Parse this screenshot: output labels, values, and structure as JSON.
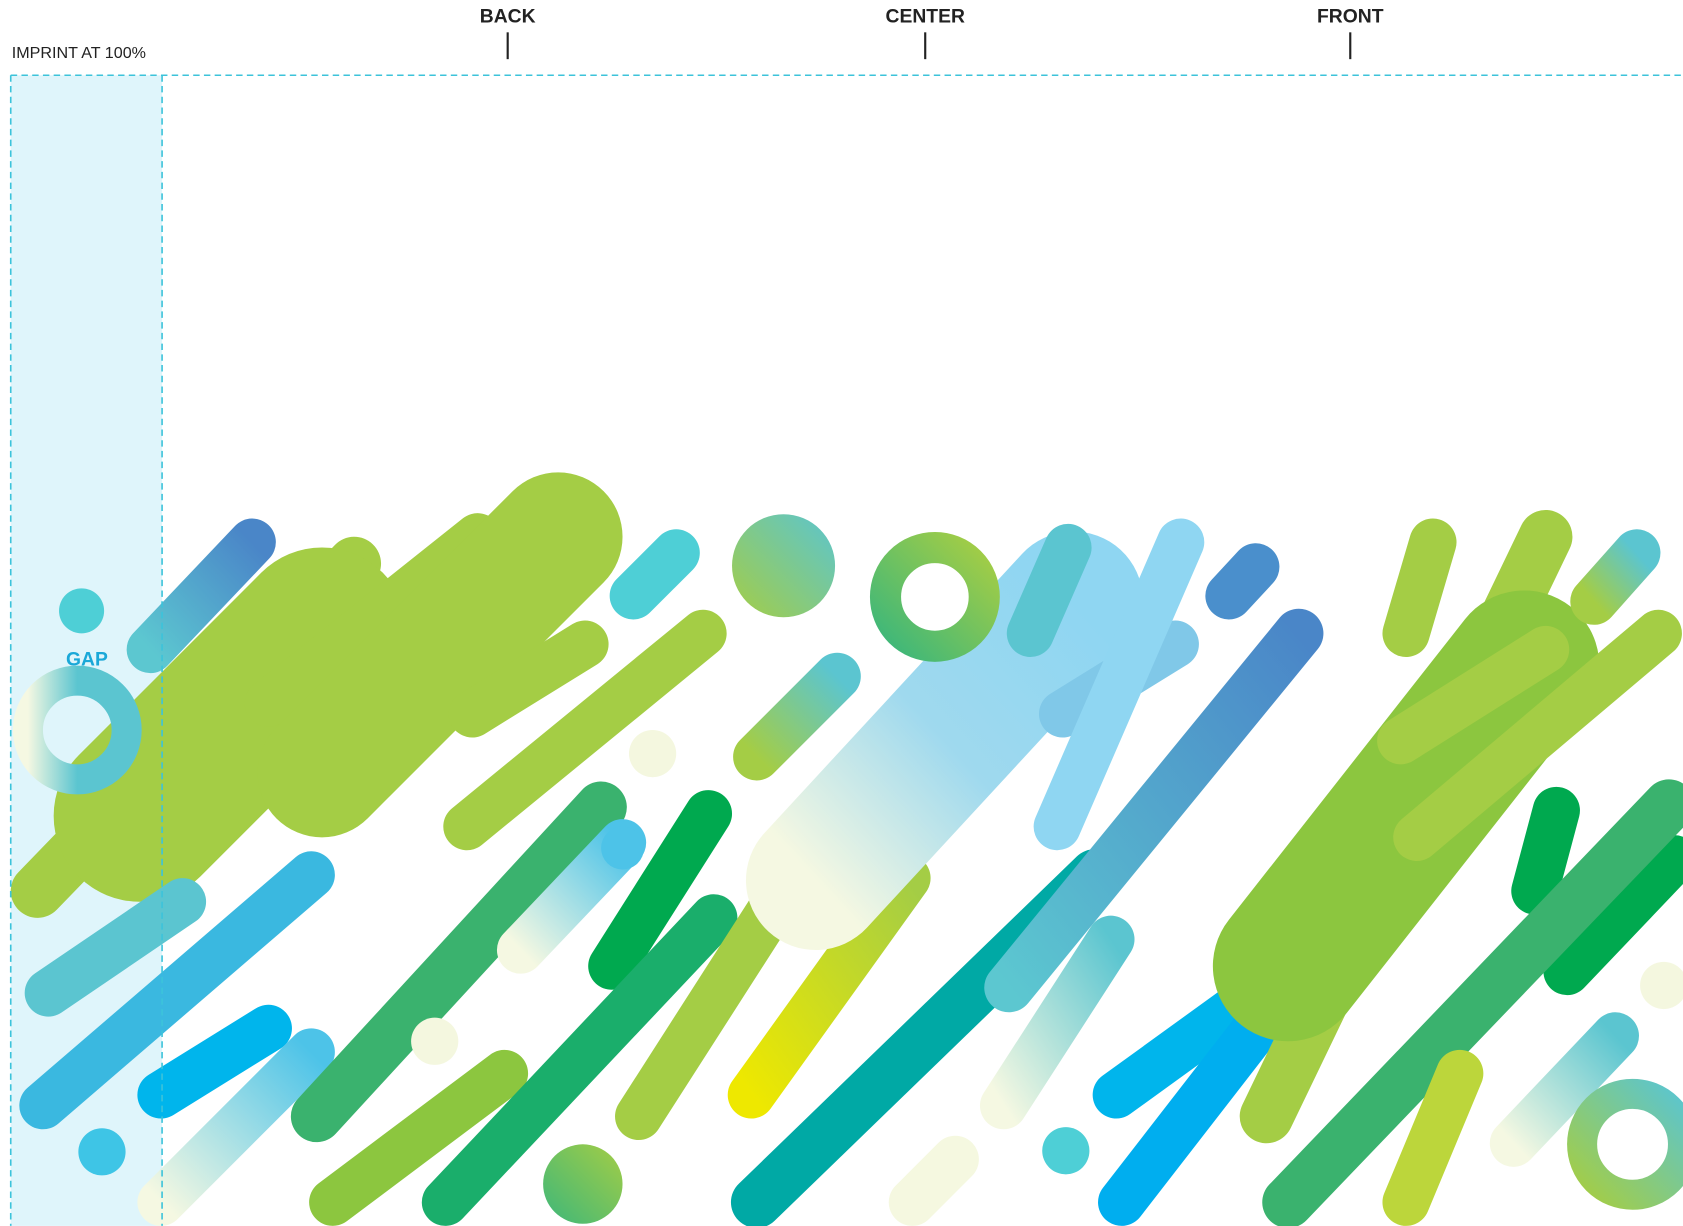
{
  "positions": {
    "back": "BACK",
    "center": "CENTER",
    "front": "FRONT"
  },
  "imprint_label": "IMPRINT AT 100%",
  "gap_label": "GAP"
}
